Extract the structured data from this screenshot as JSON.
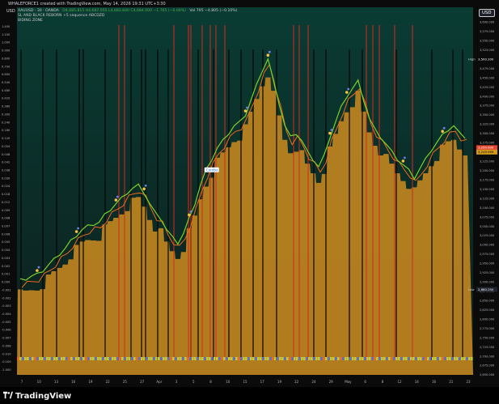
{
  "header": {
    "title": "WHALEFORCE1 created with TradingView.com, May 14, 2026 19:31 UTC+3:30",
    "symbol": "XAUUSD · 30 · OANDA",
    "ohlc": "O4,685.815 H4,687.055 L4,683.840 C4,684.000 −1.765 (−0.04%)",
    "volume": "Vol 795 −4.805 (−0.10%)",
    "indicator1": "SL AND BLACK REBORN +5 sequence ABCDZD",
    "indicator2": "BIDING ZONE",
    "currency_left": "USD",
    "currency_right": "USD"
  },
  "price_axis": {
    "labels": [
      "3,625.000",
      "3,600.000",
      "3,575.000",
      "3,550.000",
      "3,525.000",
      "3,500.000",
      "3,475.000",
      "3,450.000",
      "3,425.000",
      "3,400.000",
      "3,375.000",
      "3,350.000",
      "3,325.000",
      "3,300.000",
      "3,275.000",
      "3,250.000",
      "3,225.000",
      "3,200.000",
      "3,175.000",
      "3,150.000",
      "3,125.000",
      "3,100.000",
      "3,075.000",
      "3,050.000",
      "3,025.000",
      "3,000.000",
      "2,975.000",
      "2,950.000",
      "2,925.000",
      "2,900.000",
      "2,875.000",
      "2,850.000",
      "2,825.000",
      "2,800.000",
      "2,775.000",
      "2,750.000",
      "2,725.000",
      "2,700.000",
      "2,675.000",
      "2,650.000"
    ],
    "high_tag": "High",
    "high_value": "3,500.200",
    "low_tag": "Low",
    "low_value": "2,880.250",
    "last_value": "3,250.600",
    "last_value2": "3,249.999"
  },
  "left_axis": {
    "labels": [
      "1.400",
      "1.200",
      "1.000",
      "0.900",
      "0.800",
      "0.700",
      "0.600",
      "0.540",
      "0.480",
      "0.420",
      "0.360",
      "0.300",
      "0.240",
      "0.180",
      "0.120",
      "0.054",
      "0.048",
      "0.042",
      "0.036",
      "0.030",
      "0.024",
      "0.018",
      "0.012",
      "0.009",
      "0.008",
      "0.007",
      "0.006",
      "0.005",
      "0.004",
      "0.003",
      "0.002",
      "0.001",
      "0.000",
      "-0.001",
      "-0.002",
      "-0.003",
      "-0.004",
      "-0.005",
      "-0.006",
      "-0.007",
      "-0.008",
      "-0.010",
      "-0.100",
      "-1.000"
    ]
  },
  "time_axis": {
    "labels": [
      "7",
      "10",
      "13",
      "16",
      "19",
      "22",
      "25",
      "27",
      "Apr",
      "3",
      "5",
      "8",
      "10",
      "15",
      "17",
      "19",
      "22",
      "24",
      "29",
      "May",
      "6",
      "8",
      "12",
      "14",
      "16",
      "21",
      "23"
    ]
  },
  "chart_data": {
    "type": "line",
    "series": [
      {
        "values": [
          2905,
          2908,
          2915,
          2920,
          2930,
          2945,
          2960,
          2975,
          2990,
          3010,
          3025,
          3040,
          3050,
          3055,
          3060,
          3080,
          3095,
          3110,
          3125,
          3140,
          3152,
          3160,
          3140,
          3110,
          3085,
          3070,
          3040,
          3020,
          3005,
          3030,
          3070,
          3110,
          3160,
          3200,
          3230,
          3260,
          3280,
          3300,
          3320,
          3330,
          3350,
          3390,
          3430,
          3470,
          3500,
          3440,
          3380,
          3320,
          3290,
          3300,
          3280,
          3250,
          3230,
          3210,
          3240,
          3290,
          3330,
          3370,
          3400,
          3420,
          3440,
          3390,
          3340,
          3310,
          3290,
          3270,
          3250,
          3230,
          3215,
          3200,
          3180,
          3205,
          3230,
          3255,
          3275,
          3295,
          3310,
          3320,
          3300,
          3290
        ]
      }
    ],
    "xlabel": "",
    "ylabel": "",
    "ylim": [
      2650,
      3640
    ],
    "annotation_label": "Combo"
  },
  "colors": {
    "background": "#0b0b0b",
    "chart_bg_top": "#08352e",
    "zone_fill": "#c7891f",
    "price_line": "#7bd128",
    "sell_line": "#ef6a1a",
    "red_line": "#d32a1e",
    "black_line": "#050505",
    "blue_bar": "#5b6bd8",
    "yellow_bar": "#c8c830"
  },
  "footer": {
    "brand": "TradingView"
  }
}
